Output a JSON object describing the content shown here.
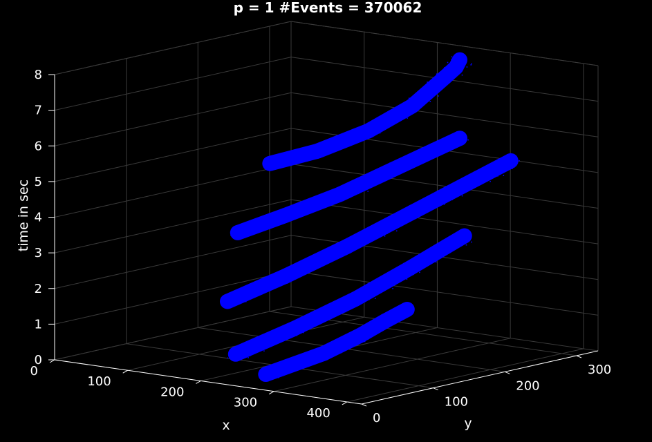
{
  "chart_data": {
    "type": "scatter",
    "projection": "3d",
    "title": "p = 1  #Events = 370062",
    "xlabel": "x",
    "ylabel": "y",
    "zlabel": "time in sec",
    "xlim": [
      0,
      420
    ],
    "ylim": [
      0,
      330
    ],
    "zlim": [
      0,
      8
    ],
    "xticks": [
      0,
      100,
      200,
      300,
      400
    ],
    "yticks": [
      0,
      100,
      200,
      300
    ],
    "zticks": [
      0,
      1,
      2,
      3,
      4,
      5,
      6,
      7,
      8
    ],
    "grid": true,
    "marker_color": "#0000ff",
    "axis_color": "#ffffff",
    "grid_color": "#3a3a3a",
    "background": "#000000",
    "series": [
      {
        "points": [
          [
            20,
            280,
            4.3
          ],
          [
            80,
            285,
            4.8
          ],
          [
            140,
            295,
            5.5
          ],
          [
            190,
            305,
            6.3
          ],
          [
            230,
            310,
            7.2
          ],
          [
            255,
            300,
            7.6
          ],
          [
            270,
            290,
            7.9
          ]
        ]
      },
      {
        "points": [
          [
            25,
            230,
            2.6
          ],
          [
            80,
            240,
            3.2
          ],
          [
            140,
            255,
            3.9
          ],
          [
            190,
            270,
            4.6
          ],
          [
            240,
            285,
            5.3
          ],
          [
            270,
            290,
            5.7
          ]
        ]
      },
      {
        "points": [
          [
            60,
            180,
            1.0
          ],
          [
            120,
            200,
            1.8
          ],
          [
            180,
            225,
            2.7
          ],
          [
            240,
            255,
            3.7
          ],
          [
            300,
            285,
            4.7
          ],
          [
            330,
            300,
            5.2
          ]
        ]
      },
      {
        "points": [
          [
            130,
            120,
            0.0
          ],
          [
            190,
            140,
            0.8
          ],
          [
            250,
            165,
            1.7
          ],
          [
            300,
            190,
            2.6
          ],
          [
            330,
            210,
            3.2
          ],
          [
            345,
            220,
            3.5
          ]
        ]
      },
      {
        "points": [
          [
            230,
            60,
            0.0
          ],
          [
            280,
            90,
            0.6
          ],
          [
            310,
            110,
            1.1
          ],
          [
            330,
            125,
            1.5
          ],
          [
            345,
            140,
            1.8
          ]
        ]
      }
    ]
  }
}
